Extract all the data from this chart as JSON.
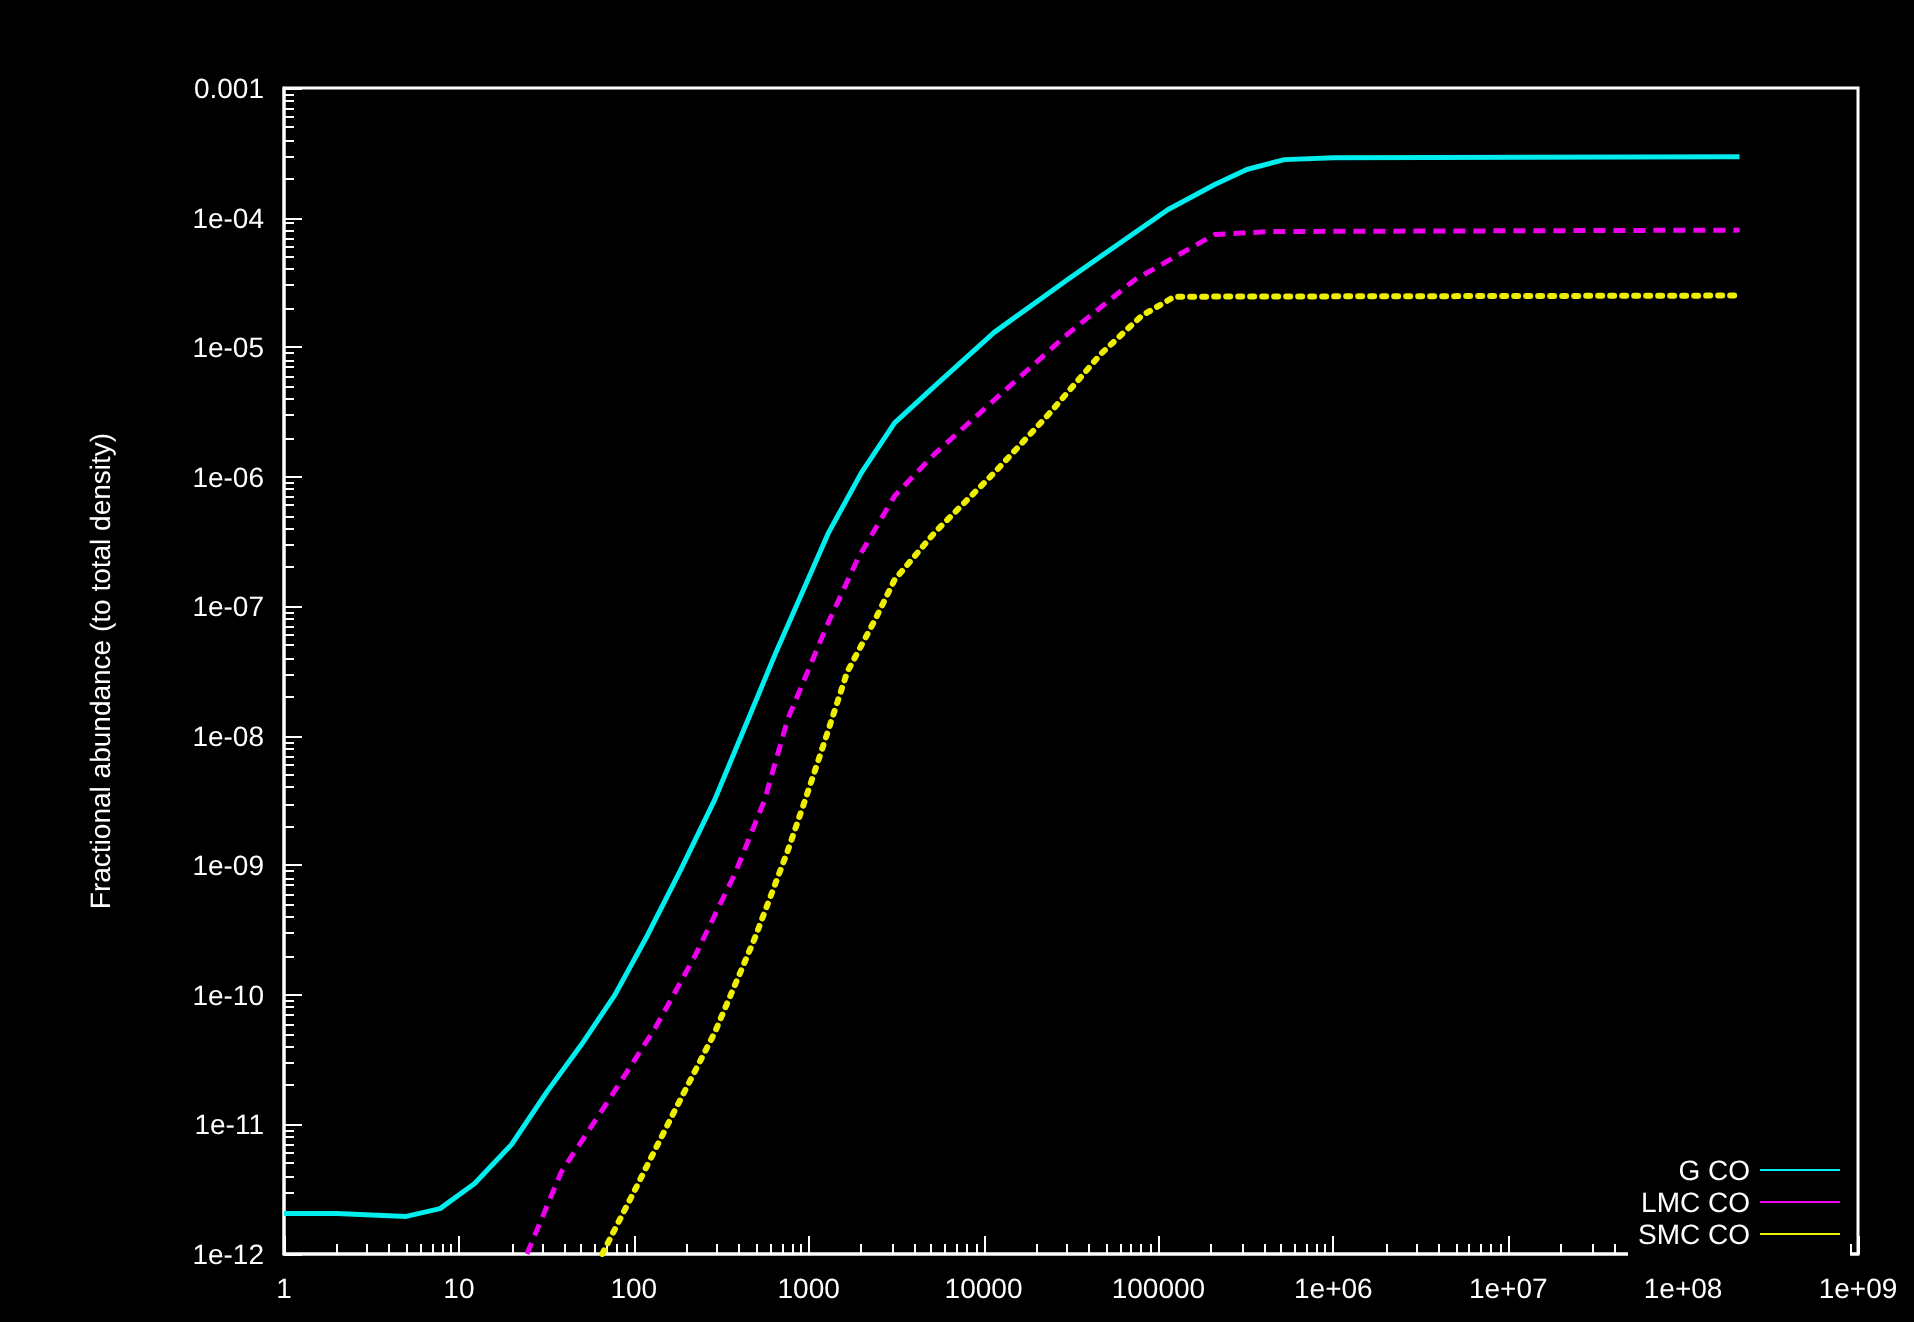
{
  "chart_data": {
    "type": "line",
    "ylabel": "Fractional abundance (to total density)",
    "log": "xy",
    "grid": false,
    "legend": "bottom right",
    "marker": "none",
    "xlim": [
      1,
      1000000000
    ],
    "ylim": [
      1e-12,
      0.001
    ],
    "xticks": [
      1,
      10,
      100,
      1000,
      10000,
      100000,
      {
        "value": 1000000,
        "label": "1e+06"
      },
      {
        "value": 10000000,
        "label": "1e+07"
      },
      {
        "value": 100000000,
        "label": "1e+08"
      },
      {
        "value": 1000000000,
        "label": "1e+09"
      }
    ],
    "yticks": [
      {
        "value": 1e-12,
        "label": "1e-12"
      },
      {
        "value": 1e-11,
        "label": "1e-11"
      },
      {
        "value": 1e-10,
        "label": "1e-10"
      },
      {
        "value": 1e-09,
        "label": "1e-09"
      },
      {
        "value": 1e-08,
        "label": "1e-08"
      },
      {
        "value": 1e-07,
        "label": "1e-07"
      },
      {
        "value": 1e-06,
        "label": "1e-06"
      },
      {
        "value": 1e-05,
        "label": "1e-05"
      },
      {
        "value": 0.0001,
        "label": "1e-04"
      },
      0.001
    ],
    "series": [
      {
        "name": "G CO",
        "color": "#00eeee",
        "line_style": "solid",
        "x": [
          1,
          2,
          5,
          7.8,
          12.3,
          20,
          32,
          50,
          78,
          120,
          186,
          290,
          650,
          1300,
          2000,
          3100,
          5250,
          11500,
          30000,
          113000,
          210000,
          320000,
          525000,
          1000000,
          210000000
        ],
        "values": [
          2.05e-12,
          2.05e-12,
          1.95e-12,
          2.24e-12,
          3.5e-12,
          7e-12,
          1.8e-11,
          4.1e-11,
          1e-10,
          2.9e-10,
          9.3e-10,
          3.2e-09,
          4.4e-08,
          3.7e-07,
          1.07e-06,
          2.6e-06,
          5e-06,
          1.3e-05,
          3.3e-05,
          0.000115,
          0.00018,
          0.000235,
          0.00028,
          0.00029,
          0.000295
        ]
      },
      {
        "name": "LMC CO",
        "color": "#ee00ee",
        "line_style": "dashed",
        "x": [
          24.5,
          38.5,
          71,
          132,
          224,
          380,
          560,
          760,
          1290,
          1900,
          3100,
          5250,
          11500,
          30000,
          73000,
          135000,
          210000,
          430000,
          210000000
        ],
        "values": [
          1e-12,
          4.3e-12,
          1.5e-11,
          5.5e-11,
          2e-10,
          8.7e-10,
          3.2e-09,
          1.35e-08,
          7.4e-08,
          2.3e-07,
          7.1e-07,
          1.5e-06,
          3.9e-06,
          1.25e-05,
          3.3e-05,
          5.3e-05,
          7.4e-05,
          7.8e-05,
          8e-05
        ]
      },
      {
        "name": "SMC CO",
        "color": "#eeee00",
        "line_style": "dotted",
        "x": [
          66,
          100,
          170,
          290,
          490,
          760,
          955,
          1175,
          1660,
          2400,
          3100,
          5250,
          11500,
          23400,
          47000,
          80000,
          123000,
          210000000
        ],
        "values": [
          1e-12,
          3e-12,
          1.25e-11,
          5.1e-11,
          2.7e-10,
          1.3e-09,
          3.2e-09,
          7.4e-09,
          3.1e-08,
          7.9e-08,
          1.6e-07,
          3.7e-07,
          1.07e-06,
          3e-06,
          8.9e-06,
          1.74e-05,
          2.45e-05,
          2.5e-05
        ]
      }
    ]
  }
}
